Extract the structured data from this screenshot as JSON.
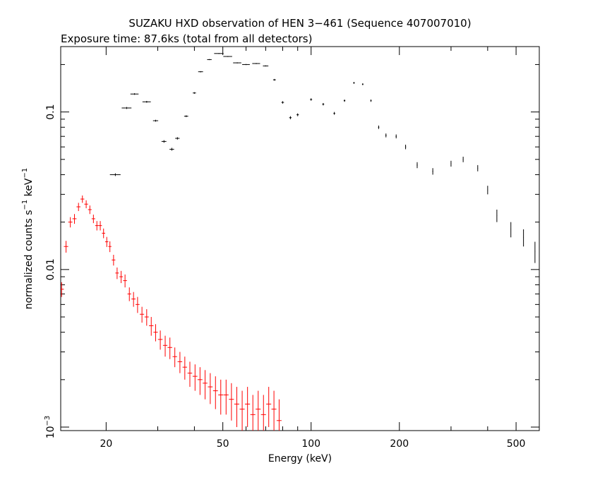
{
  "chart_data": {
    "type": "scatter",
    "title": "SUZAKU HXD observation of HEN 3−461 (Sequence 407007010)",
    "subtitle": "Exposure time: 87.6ks (total from all detectors)",
    "xlabel": "Energy (keV)",
    "ylabel_main": "normalized counts s",
    "ylabel_sup1": "−1",
    "ylabel_mid": " keV",
    "ylabel_sup2": "−1",
    "x_scale": "log",
    "y_scale": "log",
    "xlim": [
      14,
      600
    ],
    "ylim": [
      0.00095,
      0.26
    ],
    "x_ticks": [
      {
        "value": 20,
        "label": "20"
      },
      {
        "value": 50,
        "label": "50"
      },
      {
        "value": 100,
        "label": "100"
      },
      {
        "value": 200,
        "label": "200"
      },
      {
        "value": 500,
        "label": "500"
      }
    ],
    "y_ticks": [
      {
        "value": 0.1,
        "label": "0.1",
        "sup": ""
      },
      {
        "value": 0.01,
        "label": "0.01",
        "sup": ""
      },
      {
        "value": 0.001,
        "label": "10",
        "sup": "−3"
      }
    ],
    "grid": false,
    "series": [
      {
        "color": "#000000",
        "x": [
          21.5,
          23.5,
          25.0,
          27.5,
          29.5,
          31.5,
          33.5,
          35.0,
          37.5,
          40.0,
          42.0,
          45.0,
          48.5,
          52.0,
          56.0,
          60.0,
          65.0,
          70.0,
          75.0,
          80.0,
          85.0,
          90.0,
          100.0,
          110.0,
          120.0,
          130.0,
          140.0,
          150.0,
          160.0,
          170.0,
          180.0,
          195.0,
          210.0,
          230.0,
          260.0,
          300.0,
          330.0,
          370.0,
          400.0,
          430.0,
          480.0,
          530.0,
          580.0
        ],
        "y": [
          0.04,
          0.106,
          0.13,
          0.116,
          0.088,
          0.065,
          0.058,
          0.068,
          0.094,
          0.132,
          0.18,
          0.215,
          0.235,
          0.225,
          0.205,
          0.2,
          0.203,
          0.196,
          0.16,
          0.115,
          0.092,
          0.096,
          0.12,
          0.112,
          0.098,
          0.118,
          0.153,
          0.15,
          0.118,
          0.08,
          0.071,
          0.07,
          0.06,
          0.046,
          0.042,
          0.047,
          0.05,
          0.044,
          0.032,
          0.022,
          0.018,
          0.016,
          0.013
        ],
        "xerr": [
          0.9,
          0.9,
          0.8,
          0.9,
          0.6,
          0.6,
          0.6,
          0.6,
          0.6,
          0.5,
          0.8,
          0.8,
          1.8,
          1.8,
          1.8,
          1.8,
          2.0,
          1.5,
          0.8,
          0.8,
          0.8,
          0.8,
          0.8,
          0.8,
          0.8,
          0.8,
          0.8,
          0.8,
          0.8,
          0.8,
          0.8,
          0.8,
          0.8,
          0.8,
          0.8,
          0.8,
          0.8,
          0.8,
          0.8,
          0.8,
          0.8,
          0.8,
          0.8
        ],
        "yerr": [
          0.0008,
          0.0015,
          0.0015,
          0.0015,
          0.0012,
          0.0012,
          0.0012,
          0.0012,
          0.0012,
          0.0015,
          0.0015,
          0.0015,
          0.0015,
          0.0015,
          0.0015,
          0.0015,
          0.0015,
          0.0015,
          0.002,
          0.002,
          0.002,
          0.002,
          0.002,
          0.002,
          0.002,
          0.002,
          0.002,
          0.002,
          0.002,
          0.002,
          0.002,
          0.002,
          0.002,
          0.002,
          0.002,
          0.002,
          0.002,
          0.002,
          0.002,
          0.002,
          0.002,
          0.002,
          0.002
        ]
      },
      {
        "color": "#ff0000",
        "x": [
          14.1,
          14.6,
          15.1,
          15.6,
          16.1,
          16.6,
          17.1,
          17.6,
          18.1,
          18.6,
          19.1,
          19.6,
          20.1,
          20.6,
          21.2,
          21.8,
          22.5,
          23.2,
          24.0,
          24.8,
          25.6,
          26.5,
          27.5,
          28.5,
          29.5,
          30.6,
          31.8,
          33.0,
          34.3,
          35.7,
          37.1,
          38.6,
          40.2,
          41.8,
          43.5,
          45.3,
          47.2,
          49.2,
          51.3,
          53.5,
          55.8,
          58.2,
          60.7,
          63.3,
          66.0,
          68.8,
          71.7,
          74.7,
          77.8
        ],
        "y": [
          0.0075,
          0.014,
          0.02,
          0.021,
          0.025,
          0.028,
          0.026,
          0.024,
          0.021,
          0.019,
          0.019,
          0.017,
          0.015,
          0.014,
          0.0115,
          0.0095,
          0.009,
          0.0085,
          0.007,
          0.0065,
          0.006,
          0.0052,
          0.005,
          0.0044,
          0.004,
          0.0036,
          0.0033,
          0.0032,
          0.0028,
          0.0026,
          0.0024,
          0.0022,
          0.0021,
          0.002,
          0.0019,
          0.0018,
          0.0017,
          0.0016,
          0.0016,
          0.0015,
          0.0014,
          0.0013,
          0.0014,
          0.0012,
          0.0013,
          0.0012,
          0.0014,
          0.0013,
          0.0011
        ],
        "xerr": [
          0.25,
          0.25,
          0.25,
          0.25,
          0.25,
          0.25,
          0.25,
          0.25,
          0.25,
          0.25,
          0.25,
          0.25,
          0.25,
          0.25,
          0.3,
          0.3,
          0.3,
          0.35,
          0.35,
          0.4,
          0.4,
          0.45,
          0.45,
          0.5,
          0.5,
          0.55,
          0.55,
          0.6,
          0.6,
          0.65,
          0.65,
          0.7,
          0.75,
          0.8,
          0.8,
          0.85,
          0.9,
          0.95,
          1.0,
          1.05,
          1.1,
          1.15,
          1.2,
          1.25,
          1.3,
          1.35,
          1.4,
          1.45,
          1.5
        ],
        "yerr": [
          0.0008,
          0.0012,
          0.0015,
          0.0015,
          0.0015,
          0.0015,
          0.0015,
          0.0015,
          0.0013,
          0.0013,
          0.0013,
          0.0012,
          0.0011,
          0.0011,
          0.0009,
          0.0008,
          0.0008,
          0.0008,
          0.0007,
          0.0007,
          0.0007,
          0.0006,
          0.0006,
          0.0006,
          0.0005,
          0.0005,
          0.0005,
          0.0005,
          0.0004,
          0.0004,
          0.0004,
          0.0004,
          0.0004,
          0.0004,
          0.0004,
          0.0004,
          0.0004,
          0.0004,
          0.0004,
          0.0004,
          0.0004,
          0.0004,
          0.0004,
          0.0004,
          0.0004,
          0.0004,
          0.0004,
          0.0004,
          0.0004
        ]
      }
    ]
  }
}
